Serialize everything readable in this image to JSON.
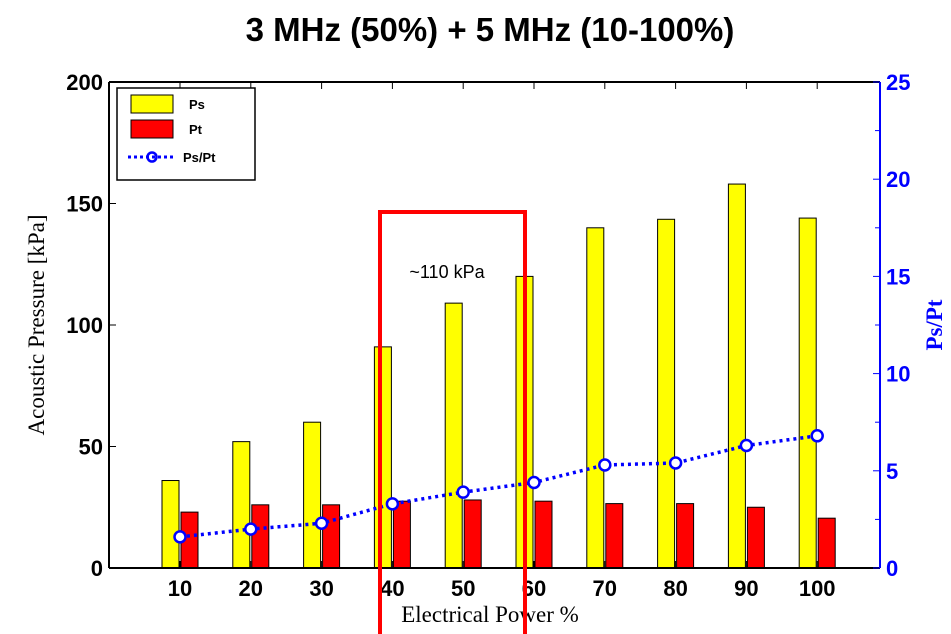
{
  "chart_data": {
    "type": "bar",
    "title": "3 MHz (50%) + 5 MHz (10-100%)",
    "xlabel": "Electrical Power %",
    "ylabel": "Acoustic Pressure [kPa]",
    "ylabel_right": "Ps/Pt",
    "categories": [
      "10",
      "20",
      "30",
      "40",
      "50",
      "60",
      "70",
      "80",
      "90",
      "100"
    ],
    "ylim": [
      0,
      200
    ],
    "ylim_right": [
      0,
      25
    ],
    "yticks": [
      "0",
      "50",
      "100",
      "150",
      "200"
    ],
    "yticks_right": [
      "0",
      "5",
      "10",
      "15",
      "20",
      "25"
    ],
    "grid": false,
    "legend_position": "top-left",
    "series": [
      {
        "name": "Ps",
        "type": "bar",
        "axis": "left",
        "color": "#ffff00",
        "values": [
          36,
          52,
          60,
          91,
          109,
          120,
          140,
          143.5,
          158,
          144
        ]
      },
      {
        "name": "Pt",
        "type": "bar",
        "axis": "left",
        "color": "#ff0000",
        "values": [
          23,
          26,
          26,
          27.5,
          28,
          27.5,
          26.5,
          26.5,
          25,
          20.5
        ]
      },
      {
        "name": "Ps/Pt",
        "type": "line",
        "axis": "right",
        "color": "#0000ff",
        "marker": "circle",
        "line_style": "dotted",
        "values": [
          1.6,
          2.0,
          2.3,
          3.3,
          3.9,
          4.4,
          5.3,
          5.4,
          6.3,
          6.8
        ]
      }
    ],
    "annotations": [
      {
        "text": "~110 kPa",
        "highlight": "red rectangle",
        "spans_categories": [
          "40",
          "50",
          "60"
        ],
        "color": "#ff0000"
      }
    ]
  }
}
